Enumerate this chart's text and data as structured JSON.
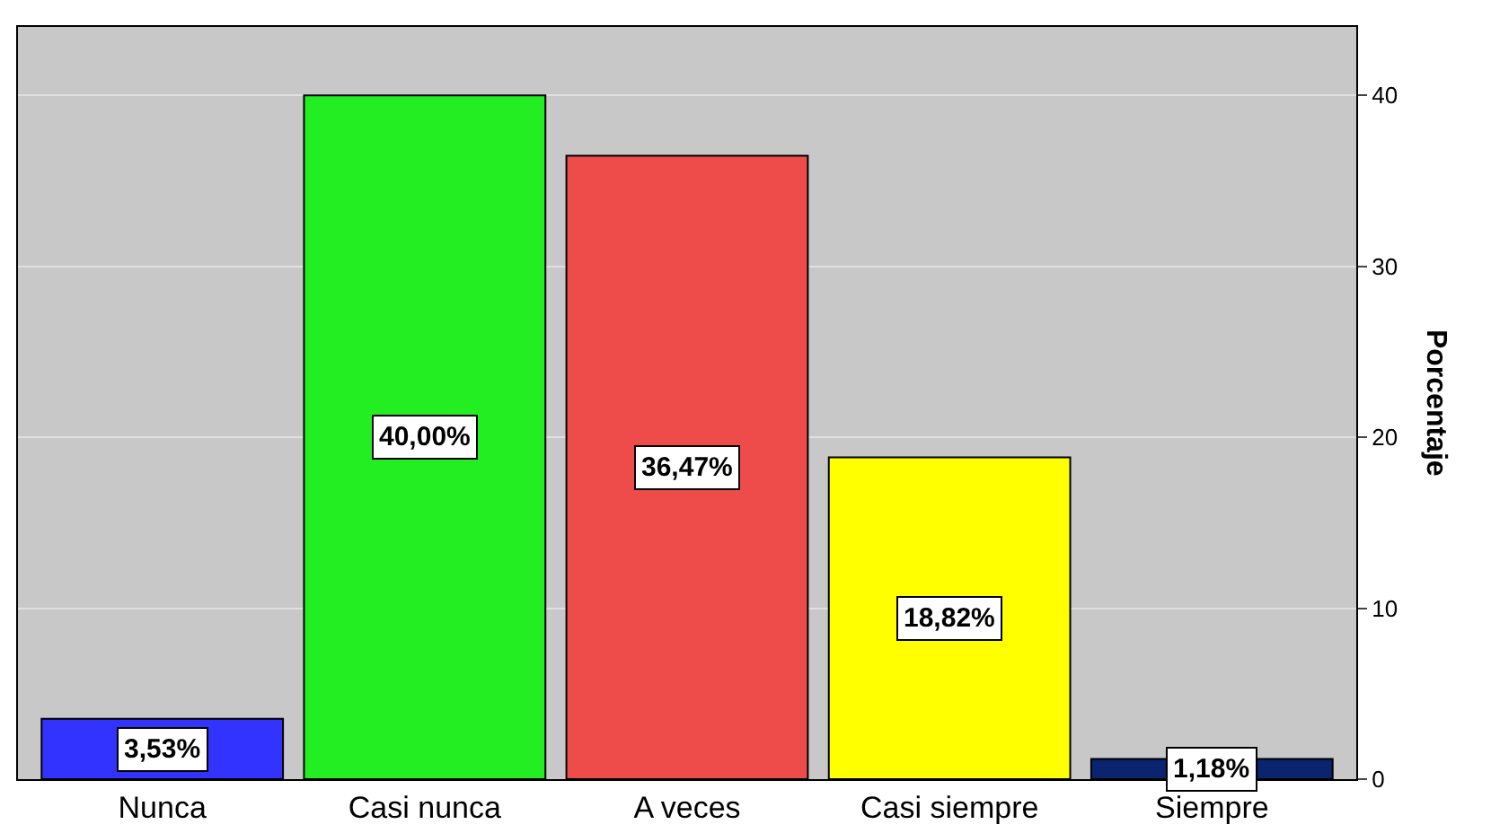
{
  "chart_data": {
    "type": "bar",
    "ylabel": "Porcentaje",
    "categories": [
      "Nunca",
      "Casi nunca",
      "A veces",
      "Casi siempre",
      "Siempre"
    ],
    "values": [
      3.53,
      40.0,
      36.47,
      18.82,
      1.18
    ],
    "colors": [
      "#3333ff",
      "#22ee22",
      "#ee4b4b",
      "#ffff00",
      "#0a2470"
    ],
    "value_labels": [
      "3,53%",
      "40,00%",
      "36,47%",
      "18,82%",
      "1,18%"
    ],
    "ylim": [
      0,
      44
    ],
    "yticks": [
      0,
      10,
      20,
      30,
      40
    ],
    "grid": "y"
  }
}
